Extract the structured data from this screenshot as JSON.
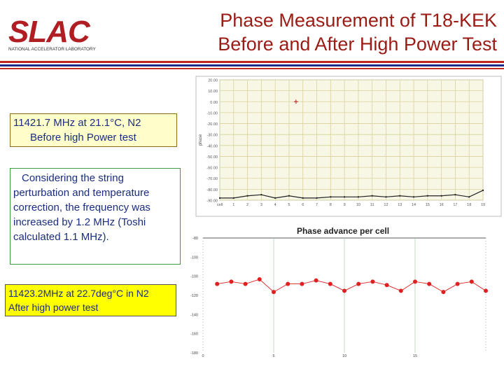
{
  "header": {
    "logo_text": "SLAC",
    "logo_subtext": "NATIONAL ACCELERATOR LABORATORY",
    "title_line1": "Phase Measurement of T18-KEK",
    "title_line2": "Before and After High Power Test",
    "colors": {
      "title": "#9a1c14",
      "rule_red": "#c0281e",
      "rule_blue": "#1e2a8a",
      "logo": "#b01e23"
    }
  },
  "notes": {
    "before_line1": "11421.7 MHz at 21.1°C, N2",
    "before_line2": "Before high Power test",
    "explanation": "Considering the string perturbation and temperature correction, the frequency was increased by 1.2 MHz (Toshi calculated 1.1 MHz).",
    "after_line1": "11423.2MHz at 22.7deg°C in N2",
    "after_line2": "After high power test"
  },
  "chart_data": [
    {
      "type": "line",
      "ylabel": "phase",
      "x_tick_labels": [
        "cell",
        "1",
        "2",
        "3",
        "4",
        "5",
        "6",
        "7",
        "8",
        "9",
        "10",
        "11",
        "12",
        "13",
        "14",
        "15",
        "16",
        "17",
        "18",
        "19"
      ],
      "y_tick_labels": [
        "20.00",
        "10.00",
        "0.00",
        "-10.00",
        "-20.00",
        "-30.00",
        "-40.00",
        "-50.00",
        "-60.00",
        "-70.00",
        "-80.00",
        "-90.00"
      ],
      "ylim": [
        -90,
        20
      ],
      "grid": true,
      "series": [
        {
          "x": [
            0,
            1,
            2,
            3,
            4,
            5,
            6,
            7,
            8,
            9,
            10,
            11,
            12,
            13,
            14,
            15,
            16,
            17,
            18,
            19
          ],
          "values": [
            -88,
            -88,
            -86,
            -85,
            -88,
            -86,
            -88,
            -88,
            -87,
            -87,
            -87,
            -86,
            -87,
            -86,
            -87,
            -86,
            -86,
            -85,
            -87,
            -81
          ],
          "color": "#222222"
        }
      ],
      "marker": {
        "x": 5.5,
        "y": 0
      },
      "colors": {
        "background": "#f8f7e6",
        "grid": "#d8d29a",
        "frame": "#bcbcbc",
        "marker": "#d03030"
      }
    },
    {
      "type": "line",
      "title": "Phase advance per cell",
      "y_tick_labels": [
        "-80",
        "-100",
        "-100",
        "-120",
        "-140",
        "-160",
        "-180"
      ],
      "x_tick_labels": [
        "0",
        "5",
        "10",
        "15"
      ],
      "ylim": [
        -180,
        -80
      ],
      "xlim": [
        0,
        20
      ],
      "grid": true,
      "series": [
        {
          "x": [
            1,
            2,
            3,
            4,
            5,
            6,
            7,
            8,
            9,
            10,
            11,
            12,
            13,
            14,
            15,
            16,
            17,
            18,
            19,
            20
          ],
          "values": [
            -120,
            -118,
            -120,
            -116,
            -127,
            -120,
            -120,
            -117,
            -120,
            -126,
            -120,
            -118,
            -121,
            -126,
            -118,
            -120,
            -127,
            -120,
            -118,
            -126
          ],
          "color": "#e02020"
        }
      ],
      "colors": {
        "grid": "#a8c8a8",
        "line": "#e02020",
        "marker": "#e02020"
      }
    }
  ]
}
